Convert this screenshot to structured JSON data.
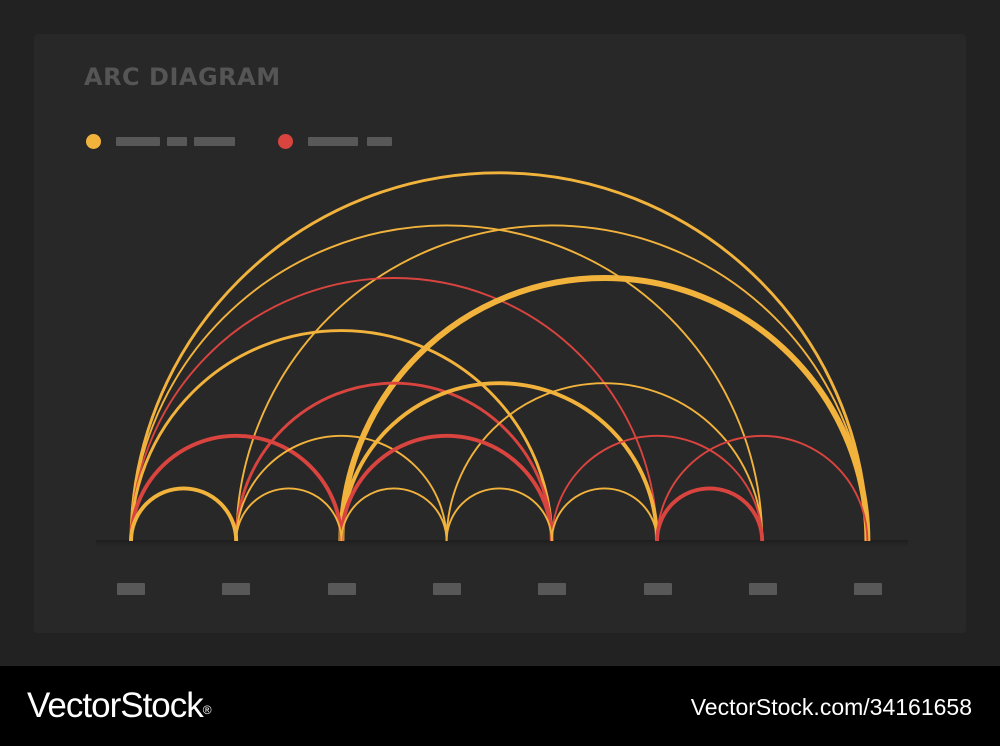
{
  "title": "ARC DIAGRAM",
  "colors": {
    "background": "#222222",
    "panel": "#282828",
    "placeholder": "#585858",
    "title": "#555555",
    "orange": "#f2b33d",
    "orange_dark": "#e6932f",
    "red": "#d9443f"
  },
  "legend": [
    {
      "color": "#f2b33d",
      "label_placeholders": 3
    },
    {
      "color": "#d9443f",
      "label_placeholders": 2
    }
  ],
  "nodes": [
    {
      "index": 0
    },
    {
      "index": 1
    },
    {
      "index": 2
    },
    {
      "index": 3
    },
    {
      "index": 4
    },
    {
      "index": 5
    },
    {
      "index": 6
    },
    {
      "index": 7
    }
  ],
  "links": [
    {
      "from": 0,
      "to": 1,
      "color": "orange",
      "weight": 3
    },
    {
      "from": 0,
      "to": 2,
      "color": "red",
      "weight": 3
    },
    {
      "from": 0,
      "to": 4,
      "color": "orange",
      "weight": 2
    },
    {
      "from": 0,
      "to": 5,
      "color": "red",
      "weight": 1
    },
    {
      "from": 0,
      "to": 6,
      "color": "orange",
      "weight": 1
    },
    {
      "from": 0,
      "to": 7,
      "color": "orange",
      "weight": 2
    },
    {
      "from": 1,
      "to": 2,
      "color": "orange",
      "weight": 1
    },
    {
      "from": 1,
      "to": 3,
      "color": "orange",
      "weight": 1
    },
    {
      "from": 1,
      "to": 4,
      "color": "red",
      "weight": 2
    },
    {
      "from": 1,
      "to": 7,
      "color": "orange",
      "weight": 1
    },
    {
      "from": 2,
      "to": 3,
      "color": "orange",
      "weight": 1
    },
    {
      "from": 2,
      "to": 4,
      "color": "red",
      "weight": 3
    },
    {
      "from": 2,
      "to": 5,
      "color": "orange",
      "weight": 3
    },
    {
      "from": 2,
      "to": 7,
      "color": "orange",
      "weight": 5
    },
    {
      "from": 3,
      "to": 4,
      "color": "orange",
      "weight": 1
    },
    {
      "from": 3,
      "to": 6,
      "color": "orange",
      "weight": 1
    },
    {
      "from": 4,
      "to": 5,
      "color": "orange",
      "weight": 1
    },
    {
      "from": 4,
      "to": 6,
      "color": "red",
      "weight": 1
    },
    {
      "from": 5,
      "to": 6,
      "color": "red",
      "weight": 3
    },
    {
      "from": 5,
      "to": 7,
      "color": "red",
      "weight": 1
    }
  ],
  "watermark": {
    "brand": "VectorStock",
    "registered": "®",
    "url": "VectorStock.com/34161658"
  }
}
